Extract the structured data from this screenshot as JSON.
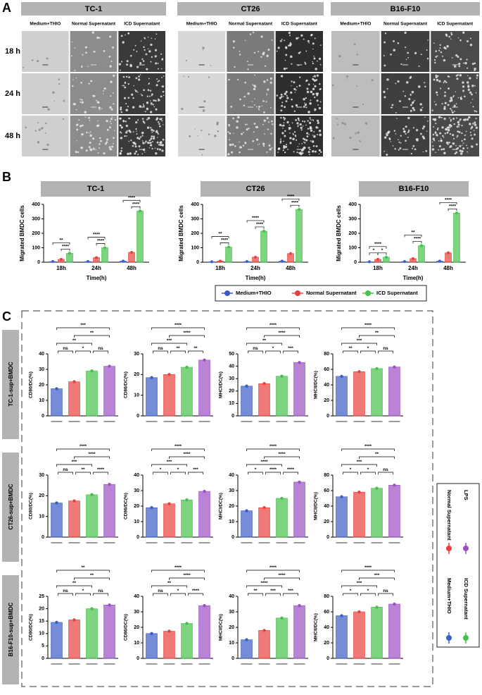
{
  "panel_labels": [
    "A",
    "B",
    "C"
  ],
  "panel_a": {
    "columns": [
      "TC-1",
      "CT26",
      "B16-F10"
    ],
    "conditions": [
      "Medium+THIO",
      "Normal Supernatant",
      "ICD Supernatant"
    ],
    "rows": [
      "18 h",
      "24 h",
      "48 h"
    ]
  },
  "row_labels_c": [
    "TC-1-sup+BMDC",
    "CT26-sup+BMDC",
    "B16-F10-sup+BMDC"
  ],
  "legend": [
    {
      "name": "Medium+THIO",
      "color": "#3b5cc4"
    },
    {
      "name": "Normal Supernatant",
      "color": "#e8403c"
    },
    {
      "name": "ICD Supernatant",
      "color": "#45c04a"
    },
    {
      "name": "LPS",
      "color": "#9b4fc4"
    }
  ],
  "chart_data": [
    {
      "type": "bar",
      "title": "TC-1",
      "ylabel": "Migrated BMDC cells",
      "xlabel": "Time(h)",
      "categories": [
        "18h",
        "24h",
        "48h"
      ],
      "series": [
        {
          "name": "Medium+THIO",
          "color": "#3b5cc4",
          "values": [
            5,
            5,
            8
          ]
        },
        {
          "name": "Normal Supernatant",
          "color": "#e8403c",
          "values": [
            20,
            32,
            68
          ]
        },
        {
          "name": "ICD Supernatant",
          "color": "#45c04a",
          "values": [
            62,
            100,
            355
          ]
        }
      ],
      "ylim": [
        0,
        400
      ],
      "yticks": [
        0,
        100,
        200,
        300,
        400
      ],
      "significance": [
        [
          "****",
          "**"
        ],
        [
          "****",
          "****"
        ],
        [
          "****",
          "****"
        ]
      ]
    },
    {
      "type": "bar",
      "title": "CT26",
      "ylabel": "Migrated BMDC cells",
      "xlabel": "Time(h)",
      "categories": [
        "18h",
        "24h",
        "48h"
      ],
      "series": [
        {
          "name": "Medium+THIO",
          "color": "#3b5cc4",
          "values": [
            3,
            5,
            8
          ]
        },
        {
          "name": "Normal Supernatant",
          "color": "#e8403c",
          "values": [
            8,
            35,
            60
          ]
        },
        {
          "name": "ICD Supernatant",
          "color": "#45c04a",
          "values": [
            105,
            215,
            365
          ]
        }
      ],
      "ylim": [
        0,
        400
      ],
      "yticks": [
        0,
        100,
        200,
        300,
        400
      ],
      "significance": [
        [
          "****",
          "**"
        ],
        [
          "****",
          "****"
        ],
        [
          "****",
          "****"
        ]
      ]
    },
    {
      "type": "bar",
      "title": "B16-F10",
      "ylabel": "Migrated BMDC cells",
      "xlabel": "Time(h)",
      "categories": [
        "18h",
        "24h",
        "48h"
      ],
      "series": [
        {
          "name": "Medium+THIO",
          "color": "#3b5cc4",
          "values": [
            3,
            5,
            8
          ]
        },
        {
          "name": "Normal Supernatant",
          "color": "#e8403c",
          "values": [
            20,
            25,
            65
          ]
        },
        {
          "name": "ICD Supernatant",
          "color": "#45c04a",
          "values": [
            35,
            115,
            340
          ]
        }
      ],
      "ylim": [
        0,
        400
      ],
      "yticks": [
        0,
        100,
        200,
        300,
        400
      ],
      "significance": [
        [
          "*",
          "*",
          "****"
        ],
        [
          "****",
          "**"
        ],
        [
          "****",
          "****"
        ]
      ]
    },
    {
      "type": "cbar",
      "ylabel": "CD80/DC(%)",
      "values": [
        17.5,
        22,
        29,
        32
      ],
      "ylim": [
        0,
        40
      ],
      "yticks": [
        0,
        10,
        20,
        30,
        40
      ],
      "significance": [
        "ns",
        "*",
        "ns",
        "**",
        "**",
        "***"
      ]
    },
    {
      "type": "cbar",
      "ylabel": "CD86/DC(%)",
      "values": [
        18.5,
        20,
        23.5,
        27
      ],
      "ylim": [
        0,
        30
      ],
      "yticks": [
        0,
        10,
        20,
        30
      ],
      "significance": [
        "ns",
        "**",
        "**",
        "***",
        "****",
        "****"
      ]
    },
    {
      "type": "cbar",
      "ylabel": "MHCI/DC(%)",
      "values": [
        24,
        26,
        32,
        43
      ],
      "ylim": [
        0,
        50
      ],
      "yticks": [
        0,
        10,
        20,
        30,
        40,
        50
      ],
      "significance": [
        "ns",
        "*",
        "***",
        "**",
        "****",
        "****"
      ]
    },
    {
      "type": "cbar",
      "ylabel": "MHCII/DC(%)",
      "values": [
        51,
        57,
        61,
        63
      ],
      "ylim": [
        0,
        80
      ],
      "yticks": [
        0,
        20,
        40,
        60,
        80
      ],
      "significance": [
        "**",
        "*",
        "ns",
        "***",
        "**",
        "****"
      ]
    },
    {
      "type": "cbar",
      "ylabel": "CD80/DC(%)",
      "values": [
        16.5,
        17.5,
        20.5,
        25.5
      ],
      "ylim": [
        0,
        30
      ],
      "yticks": [
        0,
        10,
        20,
        30
      ],
      "significance": [
        "ns",
        "**",
        "****",
        "***",
        "****",
        "****"
      ]
    },
    {
      "type": "cbar",
      "ylabel": "CD86/DC(%)",
      "values": [
        19,
        21.5,
        24,
        29.5
      ],
      "ylim": [
        0,
        40
      ],
      "yticks": [
        0,
        10,
        20,
        30,
        40
      ],
      "significance": [
        "*",
        "*",
        "***",
        "***",
        "****",
        "****"
      ]
    },
    {
      "type": "cbar",
      "ylabel": "MHCI/DC(%)",
      "values": [
        17,
        19,
        25,
        35.5
      ],
      "ylim": [
        0,
        40
      ],
      "yticks": [
        0,
        10,
        20,
        30,
        40
      ],
      "significance": [
        "*",
        "****",
        "****",
        "****",
        "****",
        "****"
      ]
    },
    {
      "type": "cbar",
      "ylabel": "MHCII/DC(%)",
      "values": [
        52,
        58,
        63,
        67
      ],
      "ylim": [
        0,
        80
      ],
      "yticks": [
        0,
        20,
        40,
        60,
        80
      ],
      "significance": [
        "*",
        "*",
        "ns",
        "***",
        "**",
        "****"
      ]
    },
    {
      "type": "cbar",
      "ylabel": "CD80/DC(%)",
      "values": [
        14.5,
        15.5,
        20,
        21.5
      ],
      "ylim": [
        0,
        25
      ],
      "yticks": [
        0,
        5,
        10,
        15,
        20,
        25
      ],
      "significance": [
        "ns",
        "*",
        "ns",
        "**",
        "**",
        "**"
      ]
    },
    {
      "type": "cbar",
      "ylabel": "CD86/DC(%)",
      "values": [
        16,
        17.5,
        22.5,
        34
      ],
      "ylim": [
        0,
        40
      ],
      "yticks": [
        0,
        10,
        20,
        30,
        40
      ],
      "significance": [
        "ns",
        "*",
        "****",
        "**",
        "****",
        "****"
      ]
    },
    {
      "type": "cbar",
      "ylabel": "MHCI/DC(%)",
      "values": [
        12,
        18,
        26,
        34
      ],
      "ylim": [
        0,
        40
      ],
      "yticks": [
        0,
        10,
        20,
        30,
        40
      ],
      "significance": [
        "**",
        "***",
        "***",
        "****",
        "****",
        "****"
      ]
    },
    {
      "type": "cbar",
      "ylabel": "MHCII/DC(%)",
      "values": [
        55,
        60,
        66,
        70
      ],
      "ylim": [
        0,
        80
      ],
      "yticks": [
        0,
        20,
        40,
        60,
        80
      ],
      "significance": [
        "*",
        "*",
        "ns",
        "***",
        "***",
        "****"
      ]
    }
  ]
}
